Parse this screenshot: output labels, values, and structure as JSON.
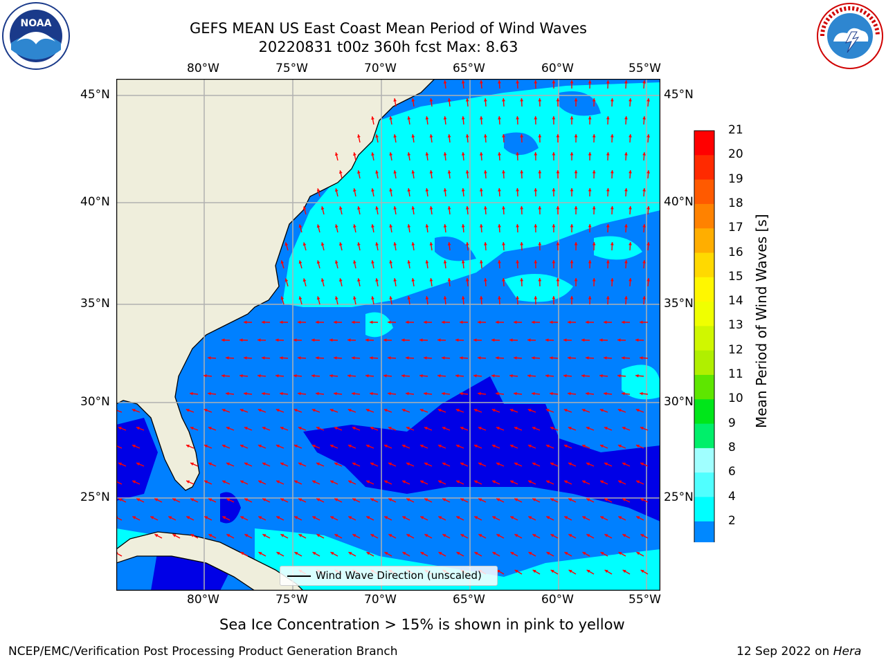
{
  "header": {
    "title_line1": "GEFS MEAN US East Coast Mean Period of Wind Waves",
    "title_line2": "20220831 t00z 360h fcst   Max: 8.63"
  },
  "map": {
    "top_lon_labels": [
      "80°W",
      "75°W",
      "70°W",
      "65°W",
      "60°W",
      "55°W"
    ],
    "bottom_lon_labels": [
      "80°W",
      "75°W",
      "70°W",
      "65°W",
      "60°W",
      "55°W"
    ],
    "left_lat_labels": [
      "45°N",
      "40°N",
      "35°N",
      "30°N",
      "25°N"
    ],
    "right_lat_labels": [
      "45°N",
      "40°N",
      "35°N",
      "30°N",
      "25°N"
    ],
    "legend_label": "Wind Wave Direction (unscaled)"
  },
  "colorbar": {
    "label": "Mean Period of Wind Waves [s]",
    "ticks": [
      "21",
      "20",
      "19",
      "18",
      "17",
      "16",
      "15",
      "14",
      "13",
      "12",
      "11",
      "10",
      "9",
      "8",
      "6",
      "4",
      "2"
    ],
    "colors": [
      "#ff0000",
      "#ff2a00",
      "#ff5a00",
      "#ff8200",
      "#ffae00",
      "#ffd900",
      "#fff700",
      "#f0ff00",
      "#d0f700",
      "#b0ef00",
      "#5ee600",
      "#00e61a",
      "#00ef6a",
      "#a0ffff",
      "#50ffff",
      "#00ffff",
      "#0088ff"
    ],
    "extend_color": "#0000e6"
  },
  "footer": {
    "sea_ice_note": "Sea Ice Concentration > 15% is shown in pink to yellow",
    "branch": "NCEP/EMC/Verification Post Processing Product Generation Branch",
    "date_prefix": "12 Sep 2022 on ",
    "host": "Hera"
  },
  "logos": {
    "noaa_text": "NOAA",
    "nws_text": "NATIONAL WEATHER SERVICE"
  },
  "map_colors": {
    "land": "#efeedc",
    "low_period": "#0080ff",
    "mid_period": "#00ffff",
    "very_low": "#0000e6",
    "arrows": "#ff0000",
    "grid": "#b0b0b0"
  }
}
